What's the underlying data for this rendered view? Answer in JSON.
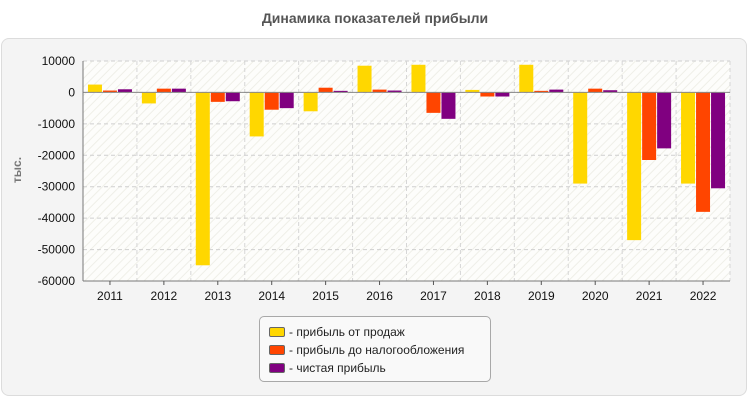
{
  "chart_data": {
    "type": "bar",
    "title": "Динамика показателей прибыли",
    "ylabel": "тыс.",
    "xlabel": "",
    "ylim": [
      -60000,
      10000
    ],
    "yticks": [
      10000,
      0,
      -10000,
      -20000,
      -30000,
      -40000,
      -50000,
      -60000
    ],
    "grid": true,
    "legend_position": "bottom",
    "categories": [
      "2011",
      "2012",
      "2013",
      "2014",
      "2015",
      "2016",
      "2017",
      "2018",
      "2019",
      "2020",
      "2021",
      "2022"
    ],
    "series": [
      {
        "name": "прибыль от продаж",
        "color": "#FFD700",
        "values": [
          2500,
          -3500,
          -55000,
          -14000,
          -6000,
          8500,
          8800,
          800,
          8800,
          -29000,
          -47000,
          -29000
        ]
      },
      {
        "name": "прибыль до налогообложения",
        "color": "#FF4500",
        "values": [
          600,
          1200,
          -3000,
          -5500,
          1500,
          900,
          -6500,
          -1300,
          500,
          1200,
          -21500,
          -38000
        ]
      },
      {
        "name": "чистая прибыль",
        "color": "#800080",
        "values": [
          1000,
          1200,
          -2800,
          -5000,
          500,
          600,
          -8400,
          -1300,
          900,
          700,
          -17800,
          -30500
        ]
      }
    ]
  }
}
